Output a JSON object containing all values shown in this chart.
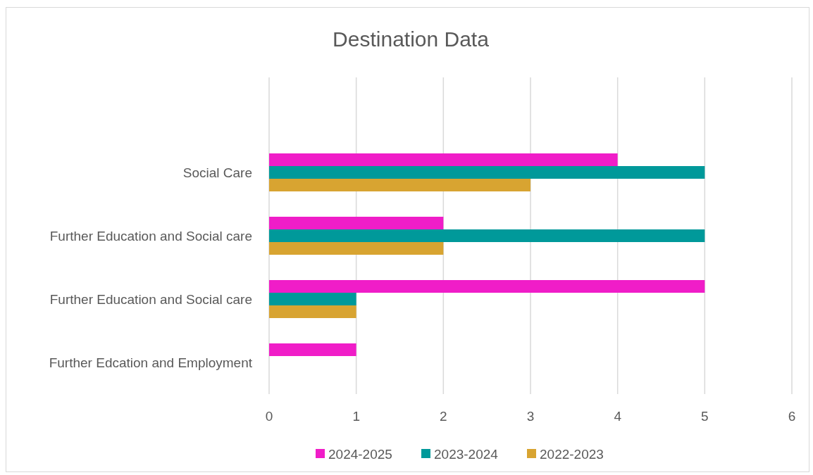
{
  "chart_data": {
    "type": "bar",
    "orientation": "horizontal",
    "title": "Destination Data",
    "categories": [
      "Social Care",
      "Further Education and Social care",
      "Further Education and Social care",
      "Further Edcation and Employment"
    ],
    "series": [
      {
        "name": "2024-2025",
        "color": "#f01dc8",
        "values": [
          4,
          2,
          5,
          1
        ]
      },
      {
        "name": "2023-2024",
        "color": "#00999a",
        "values": [
          5,
          5,
          1,
          null
        ]
      },
      {
        "name": "2022-2023",
        "color": "#d8a431",
        "values": [
          3,
          2,
          1,
          null
        ]
      }
    ],
    "xlim": [
      0,
      6
    ],
    "xticks": [
      0,
      1,
      2,
      3,
      4,
      5,
      6
    ],
    "grid": "x",
    "legend": "bottom"
  }
}
